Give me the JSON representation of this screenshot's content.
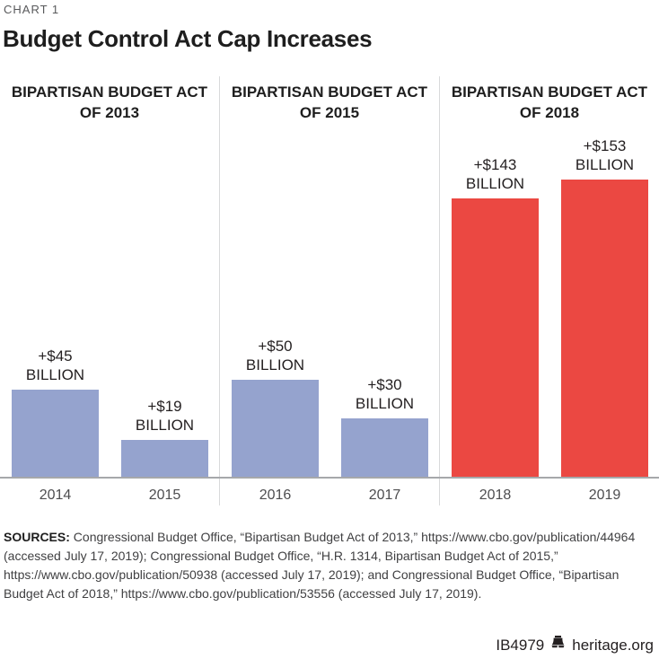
{
  "page": {
    "kicker": "CHART 1",
    "title": "Budget Control Act Cap Increases"
  },
  "chart_data": {
    "type": "bar",
    "title": "Budget Control Act Cap Increases",
    "unit_label": "BILLION",
    "xlabel": "",
    "ylabel": "",
    "ylim": [
      0,
      160
    ],
    "grid": false,
    "legend": "none",
    "categories": [
      "2014",
      "2015",
      "2016",
      "2017",
      "2018",
      "2019"
    ],
    "values": [
      45,
      19,
      50,
      30,
      143,
      153
    ],
    "colors": {
      "blue_bar": "#95A3CE",
      "red_bar": "#EB4842",
      "axis_line": "#A6A8AB",
      "divider_line": "#D8D9DA"
    },
    "groups": [
      {
        "header_line1": "BIPARTISAN BUDGET ACT",
        "header_line2": "OF 2013",
        "color": "#95A3CE",
        "bars": [
          {
            "category": "2014",
            "value": 45,
            "value_label": "+$45"
          },
          {
            "category": "2015",
            "value": 19,
            "value_label": "+$19"
          }
        ]
      },
      {
        "header_line1": "BIPARTISAN BUDGET ACT",
        "header_line2": "OF 2015",
        "color": "#95A3CE",
        "bars": [
          {
            "category": "2016",
            "value": 50,
            "value_label": "+$50"
          },
          {
            "category": "2017",
            "value": 30,
            "value_label": "+$30"
          }
        ]
      },
      {
        "header_line1": "BIPARTISAN BUDGET ACT",
        "header_line2": "OF 2018",
        "color": "#EB4842",
        "bars": [
          {
            "category": "2018",
            "value": 143,
            "value_label": "+$143"
          },
          {
            "category": "2019",
            "value": 153,
            "value_label": "+$153"
          }
        ]
      }
    ]
  },
  "sources": {
    "label": "SOURCES:",
    "text": " Congressional Budget Office, “Bipartisan Budget Act of 2013,” https://www.cbo.gov/publication/44964 (accessed July 17, 2019); Congressional Budget Office, “H.R. 1314, Bipartisan Budget Act of 2015,” https://www.cbo.gov/publication/50938 (accessed July 17, 2019); and Congressional Budget Office, “Bipartisan Budget Act of 2018,” https://www.cbo.gov/publication/53556 (accessed July 17, 2019)."
  },
  "footer": {
    "report_id": "IB4979",
    "site": "heritage.org",
    "icon": "liberty-bell-icon"
  }
}
